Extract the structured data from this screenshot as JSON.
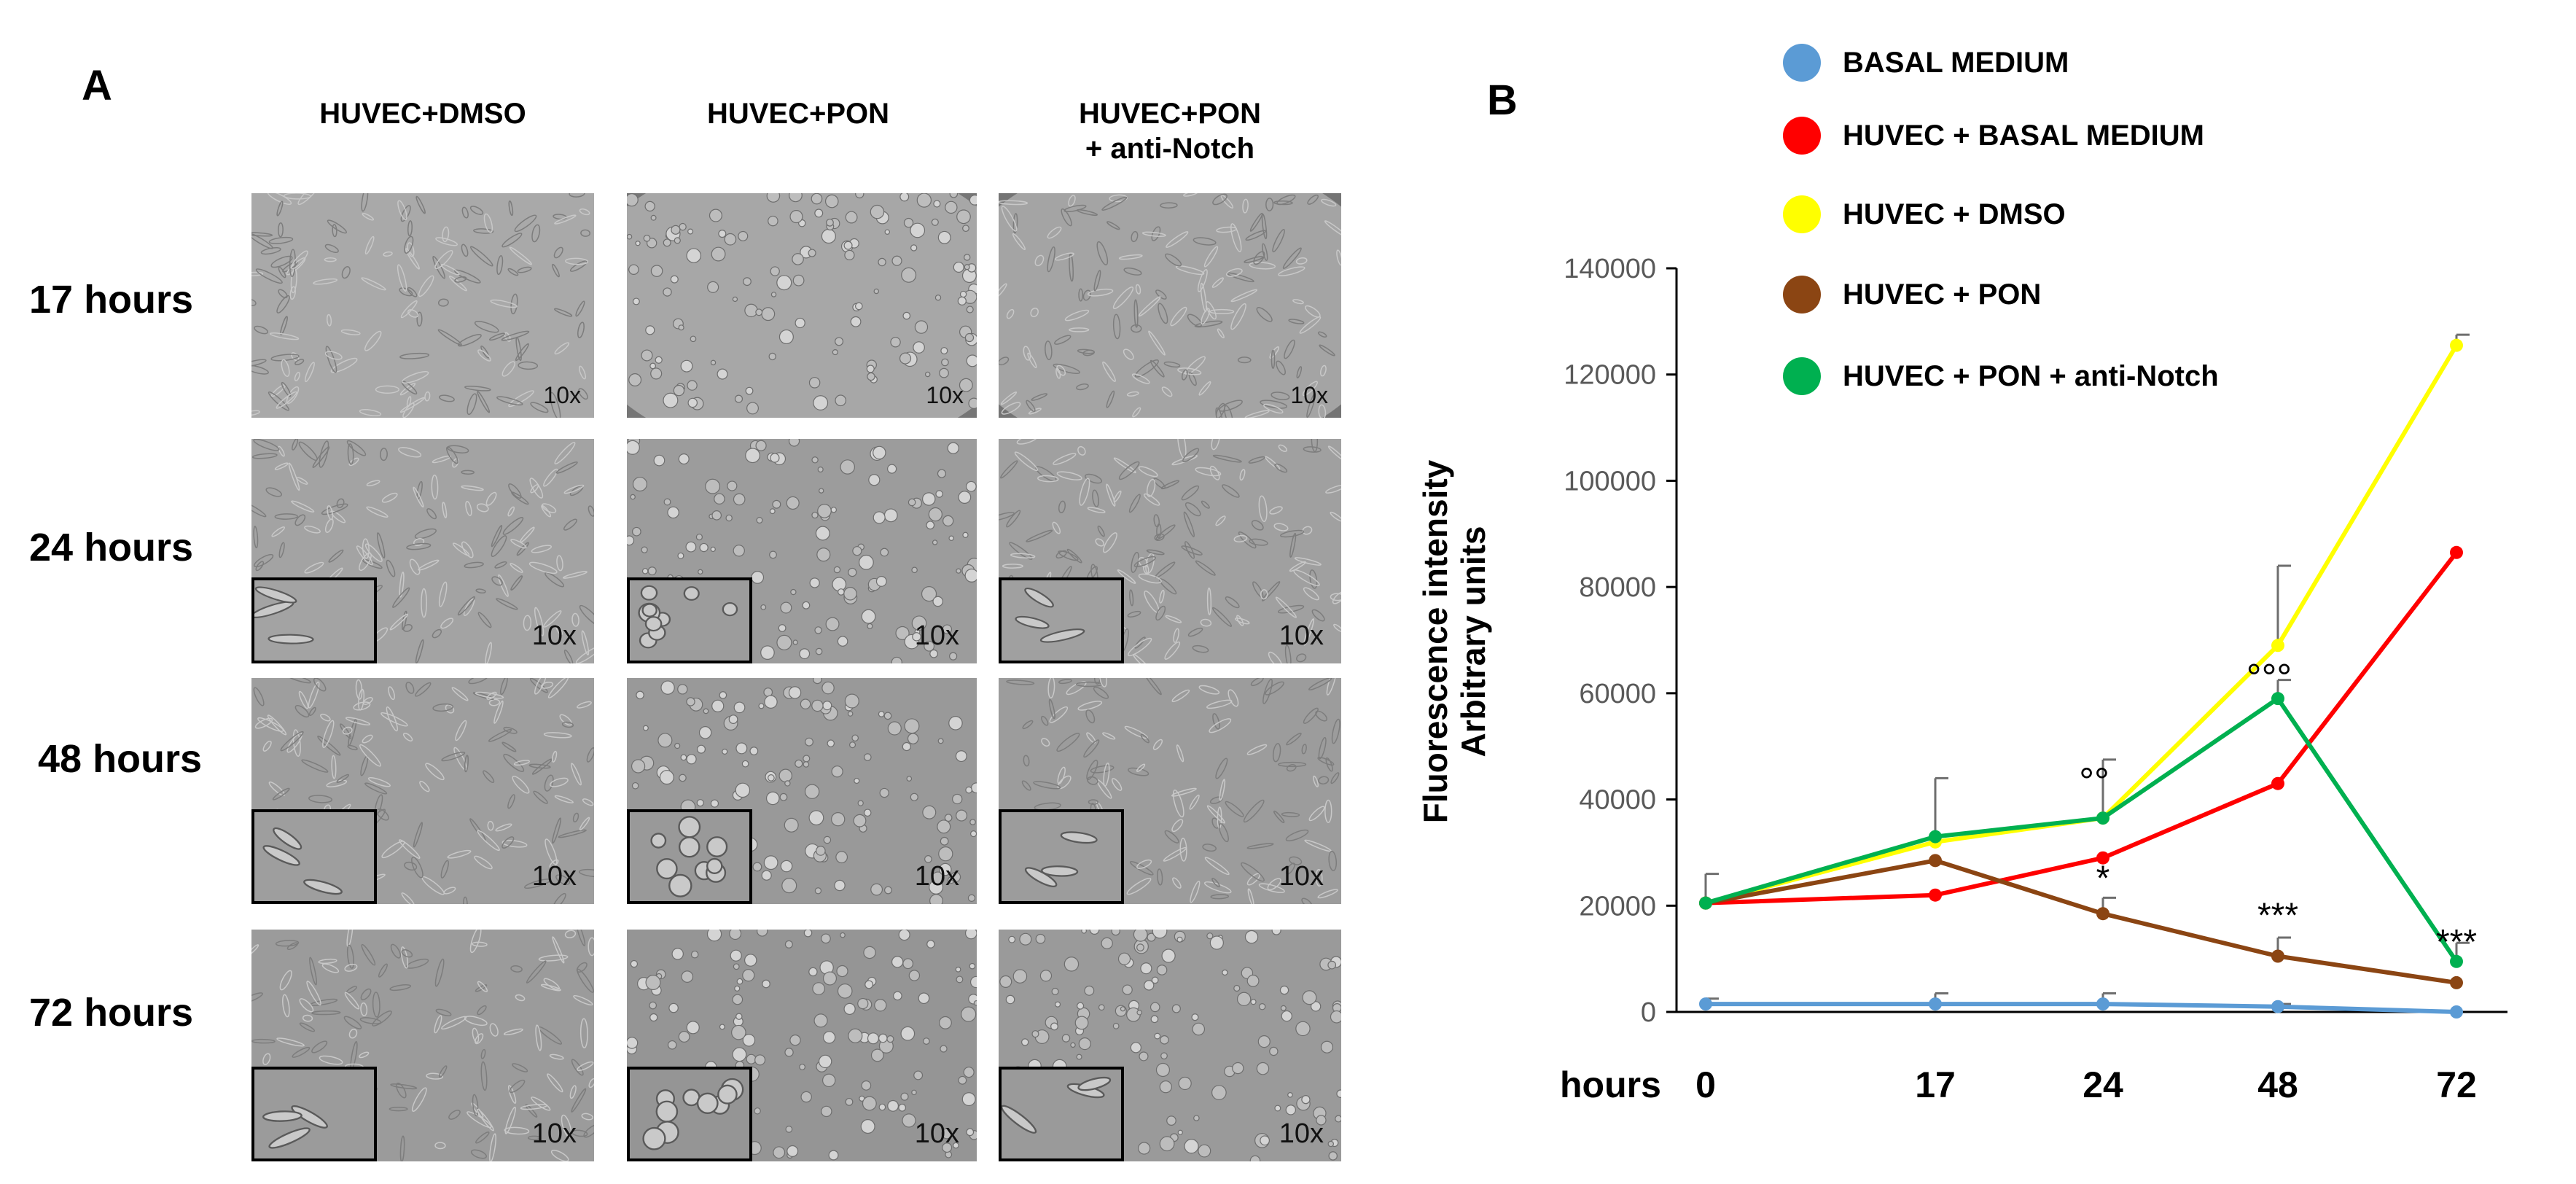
{
  "panel_a": {
    "letter": "A",
    "columns": [
      "HUVEC+DMSO",
      "HUVEC+PON",
      "HUVEC+PON\n+ anti-Notch"
    ],
    "rows": [
      "17 hours",
      "24 hours",
      "48 hours",
      "72 hours"
    ],
    "magnification": "10x"
  },
  "panel_b": {
    "letter": "B"
  },
  "chart_data": {
    "type": "line",
    "xlabel": "hours",
    "ylabel": "Fluorescence intensity\nArbitrary units",
    "categories": [
      "0",
      "17",
      "24",
      "48",
      "72"
    ],
    "ylim": [
      0,
      140000
    ],
    "yticks": [
      0,
      20000,
      40000,
      60000,
      80000,
      100000,
      120000,
      140000
    ],
    "grid": false,
    "legend_position": "top",
    "series": [
      {
        "name": "BASAL MEDIUM",
        "color": "#5b9bd5",
        "values": [
          1500,
          1500,
          1500,
          1000,
          0
        ],
        "errors": [
          1000,
          2000,
          2000,
          500,
          0
        ]
      },
      {
        "name": "HUVEC + BASAL MEDIUM",
        "color": "#ff0000",
        "values": [
          20500,
          22000,
          29000,
          43000,
          86500
        ],
        "errors": [
          0,
          0,
          0,
          0,
          0
        ]
      },
      {
        "name": "HUVEC + DMSO",
        "color": "#ffff00",
        "values": [
          20500,
          32000,
          36500,
          69000,
          125500
        ],
        "errors": [
          0,
          0,
          11000,
          15000,
          2000
        ]
      },
      {
        "name": "HUVEC + PON",
        "color": "#8b4513",
        "values": [
          20500,
          28500,
          18500,
          10500,
          5500
        ],
        "errors": [
          0,
          0,
          3000,
          3500,
          0
        ]
      },
      {
        "name": "HUVEC + PON + anti-Notch",
        "color": "#00b050",
        "values": [
          20500,
          33000,
          36500,
          59000,
          9500
        ],
        "errors": [
          5500,
          11000,
          0,
          3500,
          3500
        ]
      }
    ],
    "annotations": [
      {
        "text": "*",
        "x": "24",
        "y": 23000
      },
      {
        "text": "°°",
        "x": "24",
        "y": 41000
      },
      {
        "text": "°°°",
        "x": "48",
        "y": 60500
      },
      {
        "text": "***",
        "x": "48",
        "y": 16000
      },
      {
        "text": "***",
        "x": "72",
        "y": 11000
      }
    ]
  }
}
